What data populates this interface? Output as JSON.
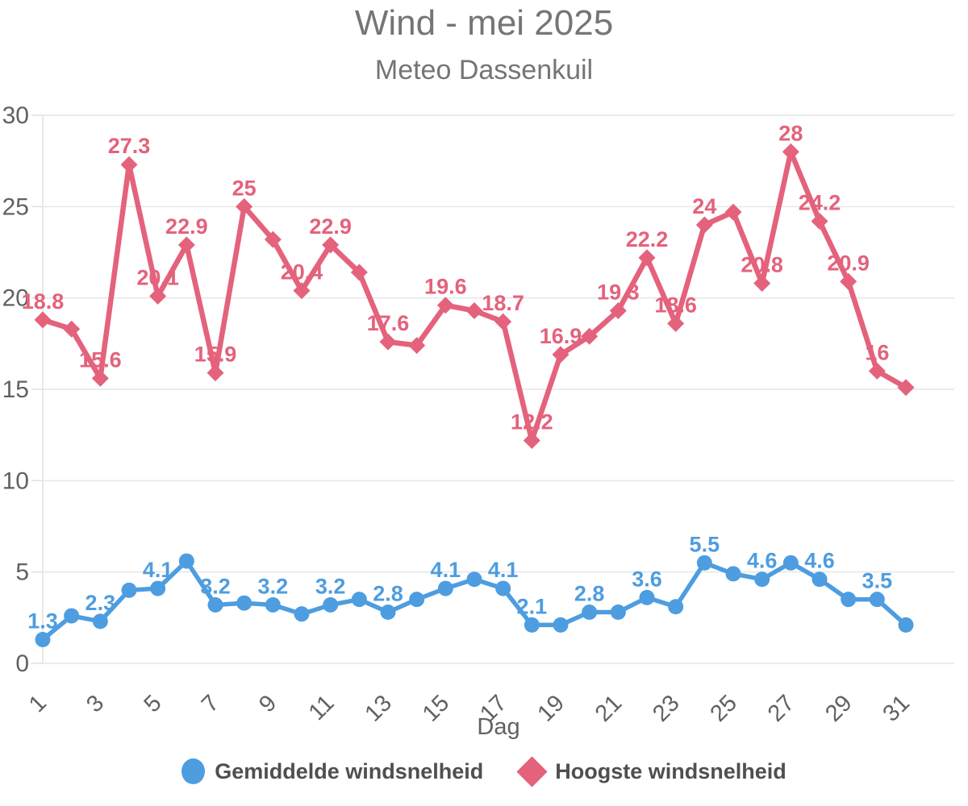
{
  "title": "Wind - mei 2025",
  "subtitle": "Meteo Dassenkuil",
  "colors": {
    "background": "#ffffff",
    "title_text": "#757575",
    "axis_text": "#616161",
    "grid_line": "#e6e6e6",
    "axis_line": "#e0e0e0",
    "legend_text": "#4f4f4f",
    "series_avg": "#4D9DE0",
    "series_max": "#E4627C"
  },
  "chart_data": {
    "type": "line",
    "title": "Wind - mei 2025",
    "subtitle": "Meteo Dassenkuil",
    "xlabel": "Dag",
    "ylabel": "",
    "x": [
      1,
      2,
      3,
      4,
      5,
      6,
      7,
      8,
      9,
      10,
      11,
      12,
      13,
      14,
      15,
      16,
      17,
      18,
      19,
      20,
      21,
      22,
      23,
      24,
      25,
      26,
      27,
      28,
      29,
      30,
      31
    ],
    "xticks": [
      1,
      3,
      5,
      7,
      9,
      11,
      13,
      15,
      17,
      19,
      21,
      23,
      25,
      27,
      29,
      31
    ],
    "yticks": [
      0,
      5,
      10,
      15,
      20,
      25,
      30
    ],
    "ylim": [
      0,
      30
    ],
    "grid": "horizontal-only",
    "legend_position": "bottom",
    "series": [
      {
        "name": "Gemiddelde windsnelheid",
        "marker": "circle",
        "color": "#4D9DE0",
        "values": [
          1.3,
          2.6,
          2.3,
          4.0,
          4.1,
          5.6,
          3.2,
          3.3,
          3.2,
          2.7,
          3.2,
          3.5,
          2.8,
          3.5,
          4.1,
          4.6,
          4.1,
          2.1,
          2.1,
          2.8,
          2.8,
          3.6,
          3.1,
          5.5,
          4.9,
          4.6,
          5.5,
          4.6,
          3.5,
          3.5,
          2.1
        ],
        "labeled_days": [
          1,
          3,
          5,
          7,
          9,
          11,
          13,
          15,
          17,
          18,
          20,
          22,
          24,
          26,
          28,
          30
        ]
      },
      {
        "name": "Hoogste windsnelheid",
        "marker": "diamond",
        "color": "#E4627C",
        "values": [
          18.8,
          18.3,
          15.6,
          27.3,
          20.1,
          22.9,
          15.9,
          25,
          23.2,
          20.4,
          22.9,
          21.4,
          17.6,
          17.4,
          19.6,
          19.3,
          18.7,
          12.2,
          16.9,
          17.9,
          19.3,
          22.2,
          18.6,
          24,
          24.7,
          20.8,
          28,
          24.2,
          20.9,
          16,
          15.1
        ],
        "labeled_days": [
          1,
          3,
          4,
          5,
          6,
          7,
          8,
          10,
          11,
          13,
          15,
          17,
          18,
          19,
          21,
          22,
          23,
          24,
          26,
          27,
          28,
          29,
          30
        ]
      }
    ]
  }
}
